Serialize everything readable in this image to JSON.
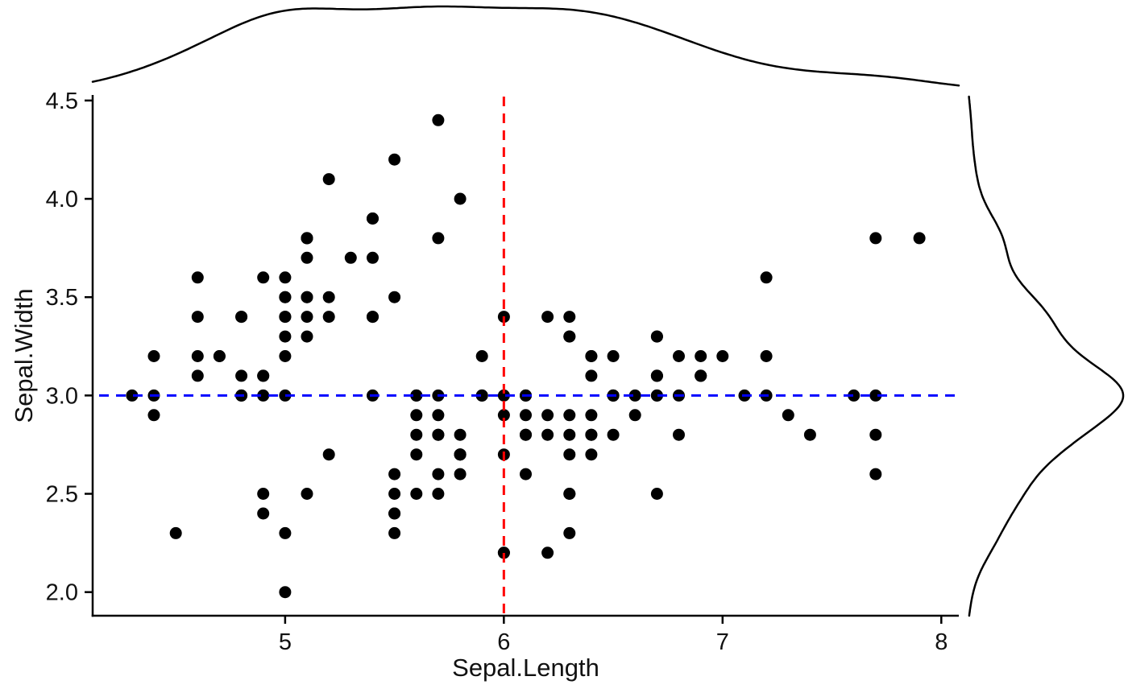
{
  "chart_data": {
    "type": "scatter",
    "title": "",
    "xlabel": "Sepal.Length",
    "ylabel": "Sepal.Width",
    "xlim": [
      4.12,
      8.08
    ],
    "ylim": [
      1.88,
      4.52
    ],
    "x_ticks": [
      5,
      6,
      7,
      8
    ],
    "x_tick_labels": [
      "5",
      "6",
      "7",
      "8"
    ],
    "y_ticks": [
      2.0,
      2.5,
      3.0,
      3.5,
      4.0,
      4.5
    ],
    "y_tick_labels": [
      "2.0",
      "2.5",
      "3.0",
      "3.5",
      "4.0",
      "4.5"
    ],
    "grid": false,
    "legend": "none",
    "point_color": "#000000",
    "point_radius_px": 7.5,
    "axis_color": "#000000",
    "points": {
      "x": [
        5.1,
        4.9,
        4.7,
        4.6,
        5.0,
        5.4,
        4.6,
        5.0,
        4.4,
        4.9,
        5.4,
        4.8,
        4.8,
        4.3,
        5.8,
        5.7,
        5.4,
        5.1,
        5.7,
        5.1,
        5.4,
        5.1,
        4.6,
        5.1,
        4.8,
        5.0,
        5.0,
        5.2,
        5.2,
        4.7,
        4.8,
        5.4,
        5.2,
        5.5,
        4.9,
        5.0,
        5.5,
        4.9,
        4.4,
        5.1,
        5.0,
        4.5,
        4.4,
        5.0,
        5.1,
        4.8,
        5.1,
        4.6,
        5.3,
        5.0,
        7.0,
        6.4,
        6.9,
        5.5,
        6.5,
        5.7,
        6.3,
        4.9,
        6.6,
        5.2,
        5.0,
        5.9,
        6.0,
        6.1,
        5.6,
        6.7,
        5.6,
        5.8,
        6.2,
        5.6,
        5.9,
        6.1,
        6.3,
        6.1,
        6.4,
        6.6,
        6.8,
        6.7,
        6.0,
        5.7,
        5.5,
        5.5,
        5.8,
        6.0,
        5.4,
        6.0,
        6.7,
        6.3,
        5.6,
        5.5,
        5.5,
        6.1,
        5.8,
        5.0,
        5.6,
        5.7,
        5.7,
        6.2,
        5.1,
        5.7,
        6.3,
        5.8,
        7.1,
        6.3,
        6.5,
        7.6,
        4.9,
        7.3,
        6.7,
        7.2,
        6.5,
        6.4,
        6.8,
        5.7,
        5.8,
        6.4,
        6.5,
        7.7,
        7.7,
        6.0,
        6.9,
        5.6,
        7.7,
        6.3,
        6.7,
        7.2,
        6.2,
        6.1,
        6.4,
        7.2,
        7.4,
        7.9,
        6.4,
        6.3,
        6.1,
        7.7,
        6.3,
        6.4,
        6.0,
        6.9,
        6.7,
        6.9,
        5.8,
        6.8,
        6.7,
        6.7,
        6.3,
        6.5,
        6.2,
        5.9
      ],
      "y": [
        3.5,
        3.0,
        3.2,
        3.1,
        3.6,
        3.9,
        3.4,
        3.4,
        2.9,
        3.1,
        3.7,
        3.4,
        3.0,
        3.0,
        4.0,
        4.4,
        3.9,
        3.5,
        3.8,
        3.8,
        3.4,
        3.7,
        3.6,
        3.3,
        3.4,
        3.0,
        3.4,
        3.5,
        3.4,
        3.2,
        3.1,
        3.4,
        4.1,
        4.2,
        3.1,
        3.2,
        3.5,
        3.6,
        3.0,
        3.4,
        3.5,
        2.3,
        3.2,
        3.5,
        3.8,
        3.0,
        3.8,
        3.2,
        3.7,
        3.3,
        3.2,
        3.2,
        3.1,
        2.3,
        2.8,
        2.8,
        3.3,
        2.4,
        2.9,
        2.7,
        2.0,
        3.0,
        2.2,
        2.9,
        2.9,
        3.1,
        3.0,
        2.7,
        2.2,
        2.5,
        3.2,
        2.8,
        2.5,
        2.8,
        2.9,
        3.0,
        2.8,
        3.0,
        2.9,
        2.6,
        2.4,
        2.4,
        2.7,
        2.7,
        3.0,
        3.4,
        3.1,
        2.3,
        3.0,
        2.5,
        2.6,
        3.0,
        2.6,
        2.3,
        2.7,
        3.0,
        2.9,
        2.9,
        2.5,
        2.8,
        3.3,
        2.7,
        3.0,
        2.9,
        3.0,
        3.0,
        2.5,
        2.9,
        2.5,
        3.6,
        3.2,
        2.7,
        3.0,
        2.5,
        2.8,
        3.2,
        3.0,
        3.8,
        2.6,
        2.2,
        3.2,
        2.8,
        2.8,
        2.7,
        3.3,
        3.2,
        2.8,
        3.0,
        2.8,
        3.0,
        2.8,
        3.8,
        2.8,
        2.8,
        2.6,
        3.0,
        3.4,
        3.1,
        3.0,
        3.1,
        3.1,
        3.1,
        2.7,
        3.2,
        3.3,
        3.0,
        2.5,
        3.0,
        3.4,
        3.0
      ]
    },
    "reference_lines": [
      {
        "orientation": "vertical",
        "value": 6,
        "color": "#FF0000",
        "linetype": "dashed"
      },
      {
        "orientation": "horizontal",
        "value": 3,
        "color": "#0000FF",
        "linetype": "dashed"
      }
    ],
    "marginals": {
      "top": {
        "variable": "Sepal.Length",
        "type": "density"
      },
      "right": {
        "variable": "Sepal.Width",
        "type": "density"
      },
      "color": "#000000"
    }
  }
}
